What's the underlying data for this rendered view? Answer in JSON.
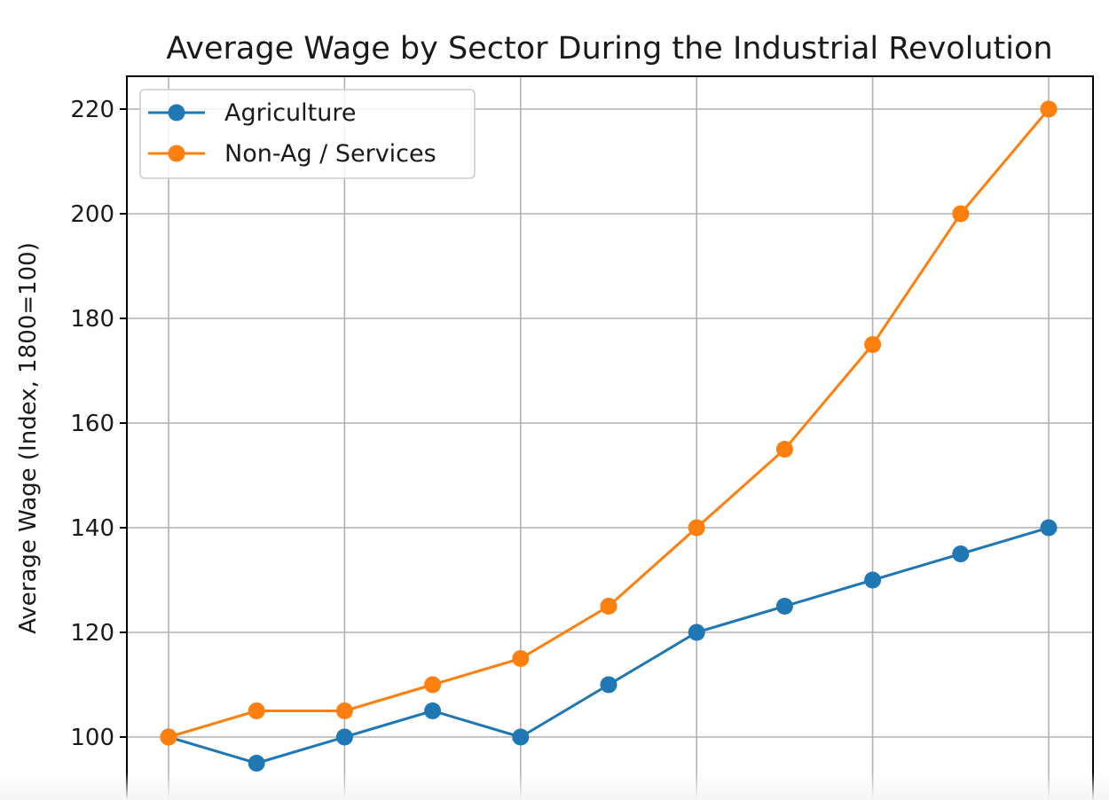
{
  "chart_data": {
    "type": "line",
    "title": "Average Wage by Sector During the Industrial Revolution",
    "xlabel": "",
    "ylabel": "Average Wage (Index, 1800=100)",
    "x": [
      0,
      1,
      2,
      3,
      4,
      5,
      6,
      7,
      8,
      9,
      10
    ],
    "xlim": [
      -0.5,
      10.5
    ],
    "ylim": [
      88,
      226
    ],
    "yticks": [
      100,
      120,
      140,
      160,
      180,
      200,
      220
    ],
    "xticks_gridlines": [
      0,
      2,
      4,
      6,
      8,
      10
    ],
    "grid": true,
    "legend_position": "upper-left",
    "series": [
      {
        "name": "Agriculture",
        "color": "#1f77b4",
        "marker": "circle",
        "values": [
          100,
          95,
          100,
          105,
          100,
          110,
          120,
          125,
          130,
          135,
          140
        ]
      },
      {
        "name": "Non-Ag / Services",
        "color": "#ff7f0e",
        "marker": "circle",
        "values": [
          100,
          105,
          105,
          110,
          115,
          125,
          140,
          155,
          175,
          200,
          220
        ]
      }
    ]
  }
}
